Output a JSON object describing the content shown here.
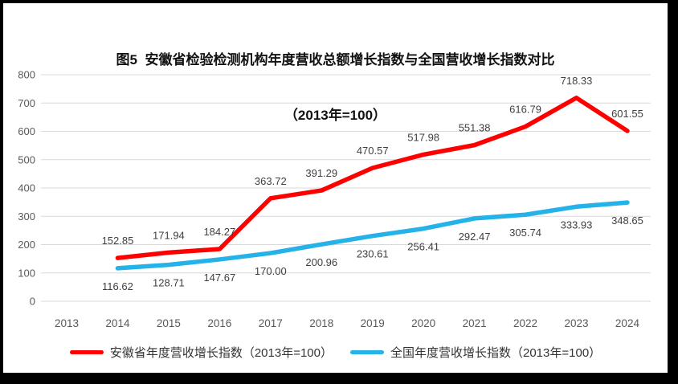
{
  "title": {
    "line1": "图5  安徽省检验检测机构年度营收总额增长指数与全国营收增长指数对比",
    "line2": "（2013年=100）"
  },
  "legend": {
    "items": [
      {
        "label": "安徽省年度营收增长指数（2013年=100）"
      },
      {
        "label": "全国年度营收增长指数（2013年=100）"
      }
    ]
  },
  "chart_data": {
    "type": "line",
    "title": "图5 安徽省检验检测机构年度营收总额增长指数与全国营收增长指数对比（2013年=100）",
    "categories": [
      "2013",
      "2014",
      "2015",
      "2016",
      "2017",
      "2018",
      "2019",
      "2020",
      "2021",
      "2022",
      "2023",
      "2024"
    ],
    "series": [
      {
        "name": "安徽省年度营收增长指数（2013年=100）",
        "color": "#FE0000",
        "label_position": "above",
        "values": [
          null,
          152.85,
          171.94,
          184.27,
          363.72,
          391.29,
          470.57,
          517.98,
          551.38,
          616.79,
          718.33,
          601.55
        ]
      },
      {
        "name": "全国年度营收增长指数（2013年=100）",
        "color": "#25B2E8",
        "label_position": "below",
        "values": [
          null,
          116.62,
          128.71,
          147.67,
          170.0,
          200.96,
          230.61,
          256.41,
          292.47,
          305.74,
          333.93,
          348.65
        ]
      }
    ],
    "xlabel": "",
    "ylabel": "",
    "ylim": [
      0,
      800
    ],
    "ytick_step": 100,
    "grid": "horizontal",
    "legend_position": "bottom",
    "colors": {
      "gridline": "#D9D9D9",
      "axis_label": "#595959",
      "data_label": "#404040"
    }
  }
}
